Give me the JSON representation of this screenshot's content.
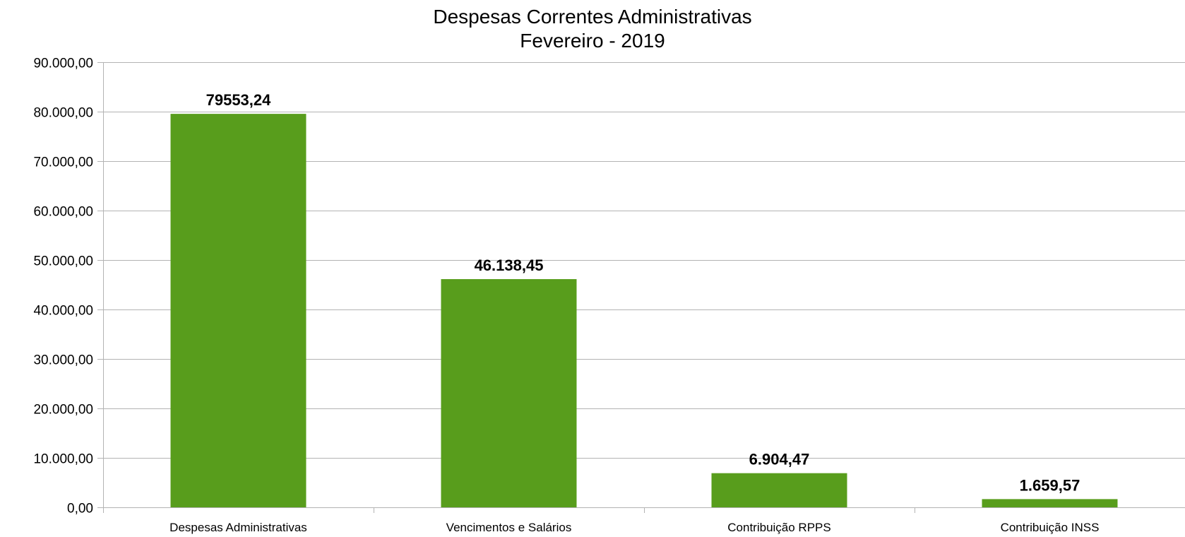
{
  "chart_data": {
    "type": "bar",
    "title": "Despesas Correntes Administrativas",
    "subtitle": "Fevereiro - 2019",
    "categories": [
      "Despesas Administrativas",
      "Vencimentos e Salários",
      "Contribuição RPPS",
      "Contribuição INSS"
    ],
    "values": [
      79553.24,
      46138.45,
      6904.47,
      1659.57
    ],
    "data_labels": [
      "79553,24",
      "46.138,45",
      "6.904,47",
      "1.659,57"
    ],
    "ylim": [
      0,
      90000
    ],
    "yticks": [
      0,
      10000,
      20000,
      30000,
      40000,
      50000,
      60000,
      70000,
      80000,
      90000
    ],
    "ytick_labels": [
      "0,00",
      "10.000,00",
      "20.000,00",
      "30.000,00",
      "40.000,00",
      "50.000,00",
      "60.000,00",
      "70.000,00",
      "80.000,00",
      "90.000,00"
    ],
    "grid": true,
    "legend": false,
    "colors": {
      "bar": "#589d1c",
      "grid": "#b3b3b3",
      "axis": "#b3b3b3"
    }
  }
}
